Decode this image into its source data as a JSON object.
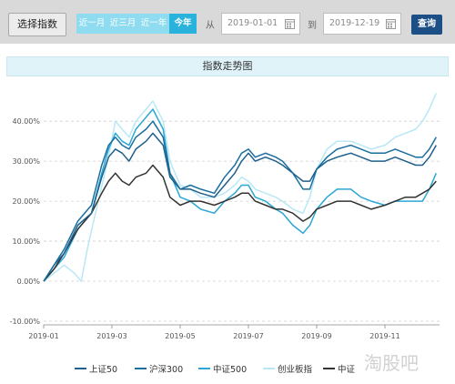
{
  "toolbar": {
    "select_label": "选择指数",
    "ranges": [
      "近一月",
      "近三月",
      "近一年",
      "今年"
    ],
    "active_range": "今年",
    "from_label": "从",
    "from_date": "2019-01-01",
    "to_label": "到",
    "to_date": "2019-12-19",
    "query_label": "查询"
  },
  "chart_title": "指数走势图",
  "watermark": "淘股吧",
  "chart_data": {
    "type": "line",
    "x_ticks": [
      "2019-01",
      "2019-03",
      "2019-05",
      "2019-07",
      "2019-09",
      "2019-11"
    ],
    "y_ticks": [
      "-10.00%",
      "0.00%",
      "10.00%",
      "20.00%",
      "30.00%",
      "40.00%"
    ],
    "ylim": [
      -10,
      48
    ],
    "xlim": [
      0,
      11.6
    ],
    "grid": "horizontal-dashed",
    "legend_position": "bottom",
    "series": [
      {
        "name": "上证50",
        "color": "#1f5f8b",
        "points": [
          [
            0,
            0
          ],
          [
            0.3,
            4
          ],
          [
            0.6,
            7
          ],
          [
            1.0,
            14
          ],
          [
            1.4,
            17
          ],
          [
            1.7,
            26
          ],
          [
            1.9,
            31
          ],
          [
            2.1,
            33
          ],
          [
            2.3,
            32
          ],
          [
            2.5,
            30
          ],
          [
            2.7,
            33
          ],
          [
            3.0,
            35
          ],
          [
            3.2,
            37
          ],
          [
            3.5,
            34
          ],
          [
            3.7,
            26
          ],
          [
            4.0,
            23
          ],
          [
            4.3,
            23
          ],
          [
            4.6,
            22
          ],
          [
            5.0,
            21
          ],
          [
            5.3,
            24
          ],
          [
            5.6,
            27
          ],
          [
            5.8,
            30
          ],
          [
            6.0,
            32
          ],
          [
            6.2,
            30
          ],
          [
            6.5,
            31
          ],
          [
            6.8,
            30
          ],
          [
            7.0,
            29
          ],
          [
            7.3,
            27
          ],
          [
            7.6,
            25
          ],
          [
            7.8,
            25
          ],
          [
            8.0,
            28
          ],
          [
            8.3,
            30
          ],
          [
            8.6,
            31
          ],
          [
            9.0,
            32
          ],
          [
            9.3,
            31
          ],
          [
            9.6,
            30
          ],
          [
            10.0,
            30
          ],
          [
            10.3,
            31
          ],
          [
            10.6,
            30
          ],
          [
            10.9,
            29
          ],
          [
            11.1,
            29
          ],
          [
            11.3,
            31
          ],
          [
            11.5,
            34
          ]
        ]
      },
      {
        "name": "沪深300",
        "color": "#1a6e9f",
        "points": [
          [
            0,
            0
          ],
          [
            0.3,
            4
          ],
          [
            0.6,
            8
          ],
          [
            1.0,
            15
          ],
          [
            1.4,
            19
          ],
          [
            1.7,
            29
          ],
          [
            1.9,
            34
          ],
          [
            2.1,
            36
          ],
          [
            2.3,
            34
          ],
          [
            2.5,
            33
          ],
          [
            2.7,
            36
          ],
          [
            3.0,
            38
          ],
          [
            3.2,
            40
          ],
          [
            3.5,
            36
          ],
          [
            3.7,
            27
          ],
          [
            4.0,
            23
          ],
          [
            4.3,
            24
          ],
          [
            4.6,
            23
          ],
          [
            5.0,
            22
          ],
          [
            5.3,
            26
          ],
          [
            5.6,
            29
          ],
          [
            5.8,
            32
          ],
          [
            6.0,
            33
          ],
          [
            6.2,
            31
          ],
          [
            6.5,
            32
          ],
          [
            6.8,
            31
          ],
          [
            7.0,
            30
          ],
          [
            7.3,
            27
          ],
          [
            7.6,
            23
          ],
          [
            7.8,
            23
          ],
          [
            8.0,
            28
          ],
          [
            8.3,
            31
          ],
          [
            8.6,
            33
          ],
          [
            9.0,
            34
          ],
          [
            9.3,
            33
          ],
          [
            9.6,
            32
          ],
          [
            10.0,
            32
          ],
          [
            10.3,
            33
          ],
          [
            10.6,
            32
          ],
          [
            10.9,
            31
          ],
          [
            11.1,
            31
          ],
          [
            11.3,
            33
          ],
          [
            11.5,
            36
          ]
        ]
      },
      {
        "name": "中证500",
        "color": "#2aa7d4",
        "points": [
          [
            0,
            0
          ],
          [
            0.3,
            3
          ],
          [
            0.6,
            6
          ],
          [
            1.0,
            13
          ],
          [
            1.4,
            17
          ],
          [
            1.7,
            27
          ],
          [
            1.9,
            33
          ],
          [
            2.1,
            37
          ],
          [
            2.3,
            35
          ],
          [
            2.5,
            34
          ],
          [
            2.7,
            38
          ],
          [
            3.0,
            41
          ],
          [
            3.2,
            43
          ],
          [
            3.5,
            38
          ],
          [
            3.7,
            27
          ],
          [
            4.0,
            21
          ],
          [
            4.3,
            20
          ],
          [
            4.6,
            18
          ],
          [
            5.0,
            17
          ],
          [
            5.3,
            20
          ],
          [
            5.6,
            22
          ],
          [
            5.8,
            24
          ],
          [
            6.0,
            24
          ],
          [
            6.2,
            21
          ],
          [
            6.5,
            20
          ],
          [
            6.8,
            18
          ],
          [
            7.0,
            17
          ],
          [
            7.3,
            14
          ],
          [
            7.6,
            12
          ],
          [
            7.8,
            14
          ],
          [
            8.0,
            18
          ],
          [
            8.3,
            21
          ],
          [
            8.6,
            23
          ],
          [
            9.0,
            23
          ],
          [
            9.3,
            21
          ],
          [
            9.6,
            20
          ],
          [
            10.0,
            19
          ],
          [
            10.3,
            20
          ],
          [
            10.6,
            20
          ],
          [
            10.9,
            20
          ],
          [
            11.1,
            20
          ],
          [
            11.3,
            23
          ],
          [
            11.5,
            27
          ]
        ]
      },
      {
        "name": "创业板指",
        "color": "#b8e8f5",
        "points": [
          [
            0,
            0
          ],
          [
            0.3,
            2
          ],
          [
            0.6,
            4
          ],
          [
            0.9,
            2
          ],
          [
            1.1,
            0
          ],
          [
            1.3,
            9
          ],
          [
            1.6,
            20
          ],
          [
            1.9,
            31
          ],
          [
            2.1,
            40
          ],
          [
            2.3,
            38
          ],
          [
            2.5,
            36
          ],
          [
            2.7,
            40
          ],
          [
            3.0,
            43
          ],
          [
            3.2,
            45
          ],
          [
            3.5,
            40
          ],
          [
            3.7,
            30
          ],
          [
            4.0,
            24
          ],
          [
            4.3,
            23
          ],
          [
            4.6,
            21
          ],
          [
            5.0,
            21
          ],
          [
            5.3,
            22
          ],
          [
            5.6,
            24
          ],
          [
            5.8,
            26
          ],
          [
            6.0,
            25
          ],
          [
            6.2,
            23
          ],
          [
            6.5,
            22
          ],
          [
            6.8,
            21
          ],
          [
            7.0,
            20
          ],
          [
            7.3,
            18
          ],
          [
            7.6,
            17
          ],
          [
            7.8,
            21
          ],
          [
            8.0,
            28
          ],
          [
            8.3,
            33
          ],
          [
            8.6,
            35
          ],
          [
            9.0,
            35
          ],
          [
            9.3,
            34
          ],
          [
            9.6,
            33
          ],
          [
            10.0,
            34
          ],
          [
            10.3,
            36
          ],
          [
            10.6,
            37
          ],
          [
            10.9,
            38
          ],
          [
            11.1,
            40
          ],
          [
            11.3,
            43
          ],
          [
            11.5,
            47
          ]
        ]
      },
      {
        "name": "中证",
        "color": "#333333",
        "points": [
          [
            0,
            0
          ],
          [
            0.3,
            3
          ],
          [
            0.6,
            7
          ],
          [
            1.0,
            13
          ],
          [
            1.4,
            17
          ],
          [
            1.7,
            22
          ],
          [
            1.9,
            25
          ],
          [
            2.1,
            27
          ],
          [
            2.3,
            25
          ],
          [
            2.5,
            24
          ],
          [
            2.7,
            26
          ],
          [
            3.0,
            27
          ],
          [
            3.2,
            29
          ],
          [
            3.5,
            26
          ],
          [
            3.7,
            21
          ],
          [
            4.0,
            19
          ],
          [
            4.3,
            20
          ],
          [
            4.6,
            20
          ],
          [
            5.0,
            19
          ],
          [
            5.3,
            20
          ],
          [
            5.6,
            21
          ],
          [
            5.8,
            22
          ],
          [
            6.0,
            22
          ],
          [
            6.2,
            20
          ],
          [
            6.5,
            19
          ],
          [
            6.8,
            18
          ],
          [
            7.0,
            18
          ],
          [
            7.3,
            17
          ],
          [
            7.6,
            15
          ],
          [
            7.8,
            16
          ],
          [
            8.0,
            18
          ],
          [
            8.3,
            19
          ],
          [
            8.6,
            20
          ],
          [
            9.0,
            20
          ],
          [
            9.3,
            19
          ],
          [
            9.6,
            18
          ],
          [
            10.0,
            19
          ],
          [
            10.3,
            20
          ],
          [
            10.6,
            21
          ],
          [
            10.9,
            21
          ],
          [
            11.1,
            22
          ],
          [
            11.3,
            23
          ],
          [
            11.5,
            25
          ]
        ]
      }
    ]
  }
}
